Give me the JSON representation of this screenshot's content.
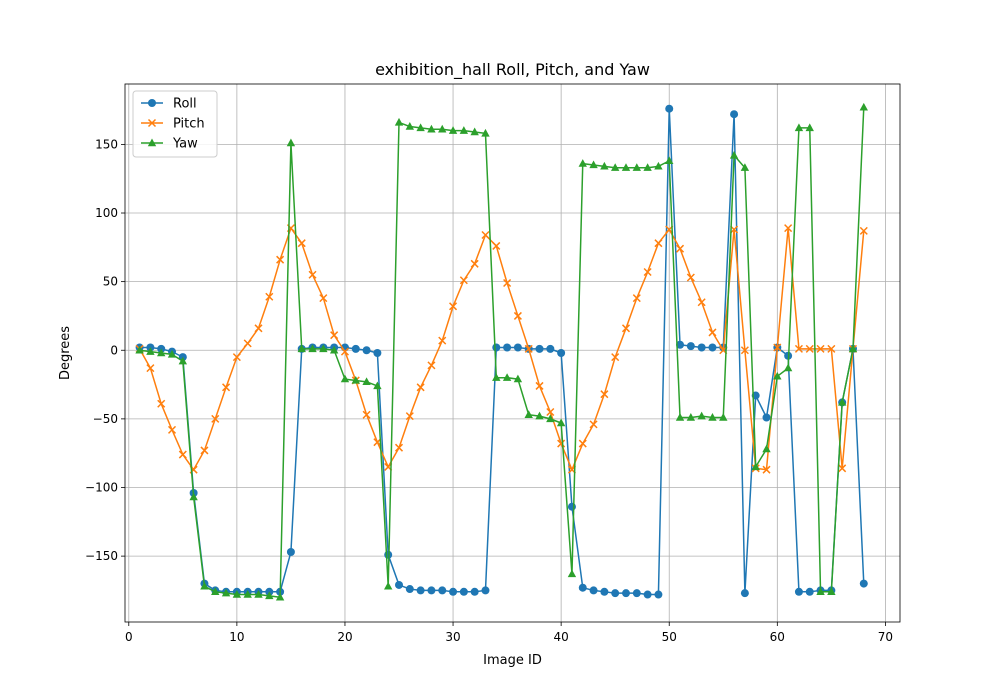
{
  "chart_data": {
    "type": "line",
    "title": "exhibition_hall Roll, Pitch, and Yaw",
    "xlabel": "Image ID",
    "ylabel": "Degrees",
    "xlim": [
      -0.35,
      71.35
    ],
    "ylim": [
      -198,
      194
    ],
    "xticks": [
      0,
      10,
      20,
      30,
      40,
      50,
      60,
      70
    ],
    "yticks": [
      -150,
      -100,
      -50,
      0,
      50,
      100,
      150
    ],
    "grid": true,
    "legend_position": "upper-left",
    "x": [
      1,
      2,
      3,
      4,
      5,
      6,
      7,
      8,
      9,
      10,
      11,
      12,
      13,
      14,
      15,
      16,
      17,
      18,
      19,
      20,
      21,
      22,
      23,
      24,
      25,
      26,
      27,
      28,
      29,
      30,
      31,
      32,
      33,
      34,
      35,
      36,
      37,
      38,
      39,
      40,
      41,
      42,
      43,
      44,
      45,
      46,
      47,
      48,
      49,
      50,
      51,
      52,
      53,
      54,
      55,
      56,
      57,
      58,
      59,
      60,
      61,
      62,
      63,
      64,
      65,
      66,
      67,
      68
    ],
    "series": [
      {
        "name": "Roll",
        "color": "#1f77b4",
        "marker": "circle",
        "values": [
          2,
          2,
          1,
          -1,
          -5,
          -104,
          -170,
          -175,
          -176,
          -176,
          -176,
          -176,
          -176,
          -176,
          -147,
          1,
          2,
          2,
          2,
          2,
          1,
          0,
          -2,
          -149,
          -171,
          -174,
          -175,
          -175,
          -175,
          -176,
          -176,
          -176,
          -175,
          2,
          2,
          2,
          1,
          1,
          1,
          -2,
          -114,
          -173,
          -175,
          -176,
          -177,
          -177,
          -177,
          -178,
          -178,
          176,
          4,
          3,
          2,
          2,
          2,
          172,
          -177,
          -33,
          -49,
          2,
          -4,
          -176,
          -176,
          -175,
          -175,
          -38,
          1,
          -170
        ]
      },
      {
        "name": "Pitch",
        "color": "#ff7f0e",
        "marker": "x",
        "values": [
          1,
          -13,
          -39,
          -58,
          -76,
          -87,
          -73,
          -50,
          -27,
          -5,
          5,
          16,
          39,
          66,
          89,
          78,
          55,
          38,
          11,
          -1,
          -22,
          -47,
          -67,
          -85,
          -71,
          -48,
          -27,
          -11,
          7,
          32,
          51,
          63,
          84,
          76,
          49,
          25,
          1,
          -26,
          -45,
          -68,
          -87,
          -68,
          -54,
          -32,
          -5,
          16,
          38,
          57,
          78,
          88,
          74,
          53,
          35,
          13,
          0,
          88,
          0,
          -86,
          -87,
          2,
          89,
          1,
          1,
          1,
          1,
          -86,
          1,
          87
        ]
      },
      {
        "name": "Yaw",
        "color": "#2ca02c",
        "marker": "triangle",
        "values": [
          0,
          -1,
          -2,
          -3,
          -8,
          -107,
          -172,
          -176,
          -177,
          -178,
          -178,
          -178,
          -179,
          -180,
          151,
          1,
          1,
          1,
          0,
          -21,
          -22,
          -23,
          -26,
          -172,
          166,
          163,
          162,
          161,
          161,
          160,
          160,
          159,
          158,
          -20,
          -20,
          -21,
          -47,
          -48,
          -50,
          -53,
          -163,
          136,
          135,
          134,
          133,
          133,
          133,
          133,
          134,
          138,
          -49,
          -49,
          -48,
          -49,
          -49,
          142,
          133,
          -85,
          -72,
          -19,
          -13,
          162,
          162,
          -176,
          -176,
          -38,
          1,
          177
        ]
      }
    ]
  }
}
